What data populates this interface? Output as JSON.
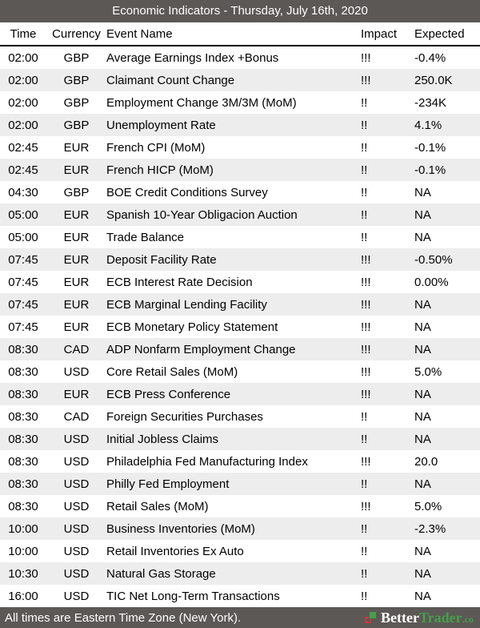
{
  "header": {
    "title": "Economic Indicators - Thursday, July 16th, 2020"
  },
  "table": {
    "columns": [
      "Time",
      "Currency",
      "Event Name",
      "Impact",
      "Expected"
    ],
    "rows": [
      {
        "time": "02:00",
        "currency": "GBP",
        "event": "Average Earnings Index +Bonus",
        "impact": "!!!",
        "expected": "-0.4%"
      },
      {
        "time": "02:00",
        "currency": "GBP",
        "event": "Claimant Count Change",
        "impact": "!!!",
        "expected": "250.0K"
      },
      {
        "time": "02:00",
        "currency": "GBP",
        "event": "Employment Change 3M/3M (MoM)",
        "impact": "!!",
        "expected": "-234K"
      },
      {
        "time": "02:00",
        "currency": "GBP",
        "event": "Unemployment Rate",
        "impact": "!!",
        "expected": "4.1%"
      },
      {
        "time": "02:45",
        "currency": "EUR",
        "event": "French CPI (MoM)",
        "impact": "!!",
        "expected": "-0.1%"
      },
      {
        "time": "02:45",
        "currency": "EUR",
        "event": "French HICP (MoM)",
        "impact": "!!",
        "expected": "-0.1%"
      },
      {
        "time": "04:30",
        "currency": "GBP",
        "event": "BOE Credit Conditions Survey",
        "impact": "!!",
        "expected": "NA"
      },
      {
        "time": "05:00",
        "currency": "EUR",
        "event": "Spanish 10-Year Obligacion Auction",
        "impact": "!!",
        "expected": "NA"
      },
      {
        "time": "05:00",
        "currency": "EUR",
        "event": "Trade Balance",
        "impact": "!!",
        "expected": "NA"
      },
      {
        "time": "07:45",
        "currency": "EUR",
        "event": "Deposit Facility Rate",
        "impact": "!!!",
        "expected": "-0.50%"
      },
      {
        "time": "07:45",
        "currency": "EUR",
        "event": "ECB Interest Rate Decision",
        "impact": "!!!",
        "expected": "0.00%"
      },
      {
        "time": "07:45",
        "currency": "EUR",
        "event": "ECB Marginal Lending Facility",
        "impact": "!!!",
        "expected": "NA"
      },
      {
        "time": "07:45",
        "currency": "EUR",
        "event": "ECB Monetary Policy Statement",
        "impact": "!!!",
        "expected": "NA"
      },
      {
        "time": "08:30",
        "currency": "CAD",
        "event": "ADP Nonfarm Employment Change",
        "impact": "!!!",
        "expected": "NA"
      },
      {
        "time": "08:30",
        "currency": "USD",
        "event": "Core Retail Sales (MoM)",
        "impact": "!!!",
        "expected": "5.0%"
      },
      {
        "time": "08:30",
        "currency": "EUR",
        "event": "ECB Press Conference",
        "impact": "!!!",
        "expected": "NA"
      },
      {
        "time": "08:30",
        "currency": "CAD",
        "event": "Foreign Securities Purchases",
        "impact": "!!",
        "expected": "NA"
      },
      {
        "time": "08:30",
        "currency": "USD",
        "event": "Initial Jobless Claims",
        "impact": "!!",
        "expected": "NA"
      },
      {
        "time": "08:30",
        "currency": "USD",
        "event": "Philadelphia Fed Manufacturing Index",
        "impact": "!!!",
        "expected": "20.0"
      },
      {
        "time": "08:30",
        "currency": "USD",
        "event": "Philly Fed Employment",
        "impact": "!!",
        "expected": "NA"
      },
      {
        "time": "08:30",
        "currency": "USD",
        "event": "Retail Sales (MoM)",
        "impact": "!!!",
        "expected": "5.0%"
      },
      {
        "time": "10:00",
        "currency": "USD",
        "event": "Business Inventories (MoM)",
        "impact": "!!",
        "expected": "-2.3%"
      },
      {
        "time": "10:00",
        "currency": "USD",
        "event": "Retail Inventories Ex Auto",
        "impact": "!!",
        "expected": "NA"
      },
      {
        "time": "10:30",
        "currency": "USD",
        "event": "Natural Gas Storage",
        "impact": "!!",
        "expected": "NA"
      },
      {
        "time": "16:00",
        "currency": "USD",
        "event": "TIC Net Long-Term Transactions",
        "impact": "!!",
        "expected": "NA"
      }
    ]
  },
  "footer": {
    "note": "All times are Eastern Time Zone (New York).",
    "brand_part1": "Better",
    "brand_part2": "Trader",
    "brand_suffix": ".co"
  },
  "colors": {
    "bar_background": "#5c5855",
    "alt_row_background": "#ededed",
    "brand_green": "#45a049",
    "logo_red": "#c63b3b",
    "text": "#000000",
    "bar_text": "#ffffff"
  }
}
